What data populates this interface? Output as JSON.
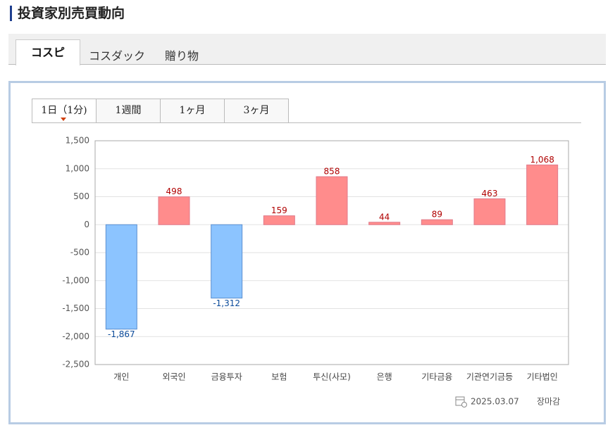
{
  "header": {
    "title": "投資家別売買動向"
  },
  "tabs": [
    "コスピ",
    "コスダック",
    "贈り物"
  ],
  "period_tabs": [
    "1日（1分)",
    "1週間",
    "1ヶ月",
    "3ヶ月"
  ],
  "footer": {
    "date": "2025.03.07",
    "status": "장마감"
  },
  "chart_data": {
    "type": "bar",
    "categories": [
      "개인",
      "외국인",
      "금융투자",
      "보험",
      "투신(사모)",
      "은행",
      "기타금융",
      "기관연기금등",
      "기타법인"
    ],
    "values": [
      -1867,
      498,
      -1312,
      159,
      858,
      44,
      89,
      463,
      1068
    ],
    "value_labels": [
      "-1,867",
      "498",
      "-1,312",
      "159",
      "858",
      "44",
      "89",
      "463",
      "1,068"
    ],
    "positive_color": "#ff8c8c",
    "negative_color": "#8cc4ff",
    "ylim": [
      -2500,
      1500
    ],
    "yticks": [
      {
        "value": -2500,
        "label": "-2,500"
      },
      {
        "value": -2000,
        "label": "-2,000"
      },
      {
        "value": -1500,
        "label": "-1,500"
      },
      {
        "value": -1000,
        "label": "-1,000"
      },
      -500,
      0,
      500,
      {
        "value": 1000,
        "label": "1,000"
      },
      {
        "value": 1500,
        "label": "1,500"
      }
    ],
    "grid": true
  }
}
